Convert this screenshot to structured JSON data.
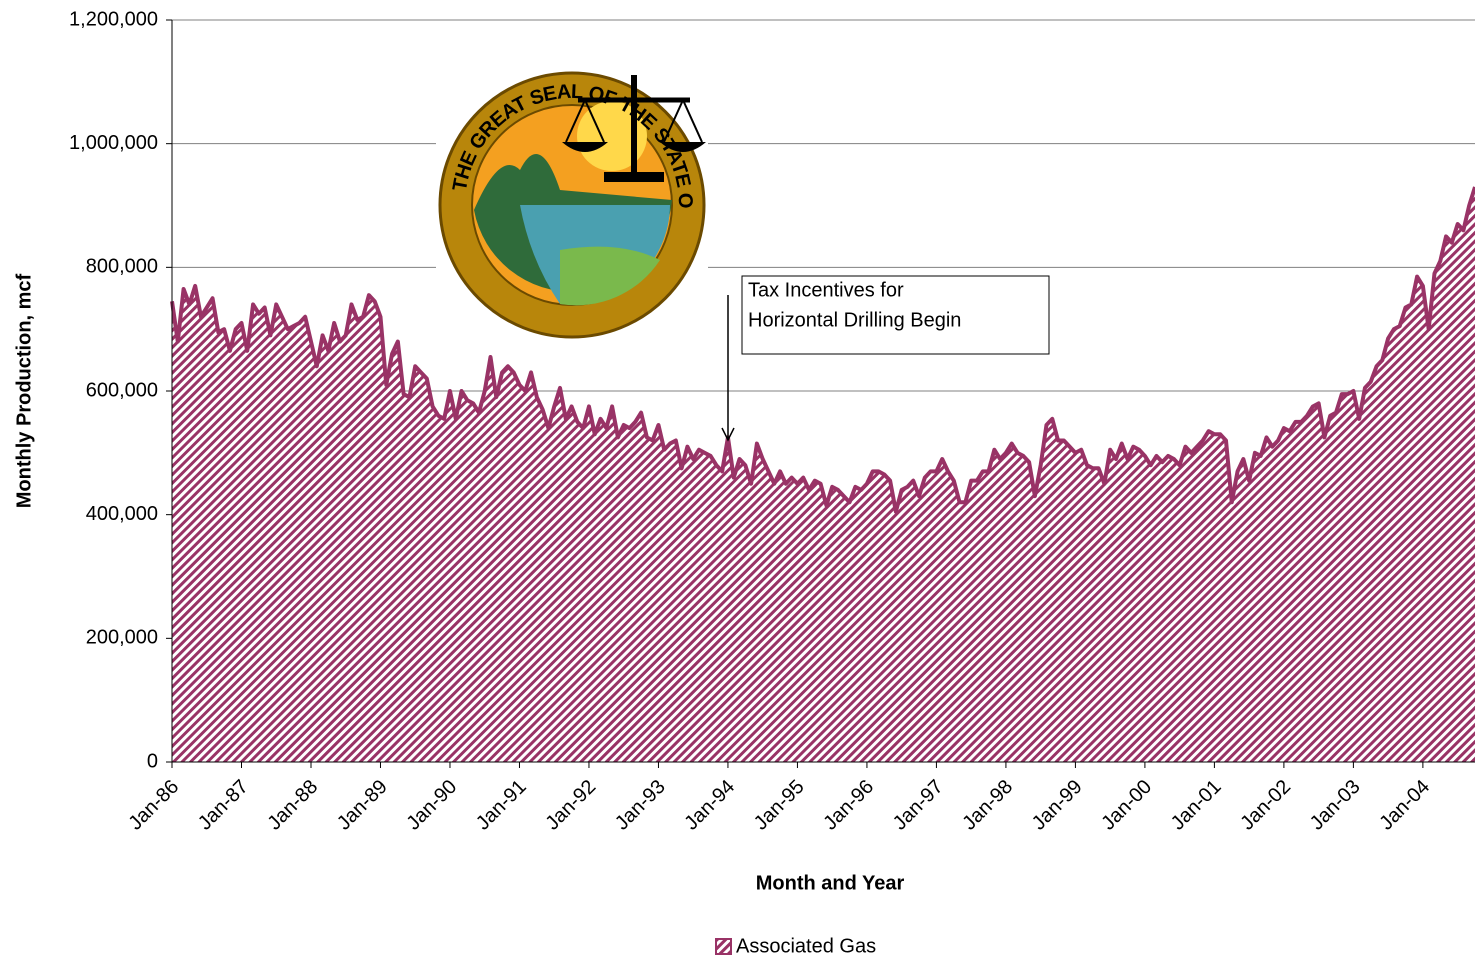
{
  "chart_data": {
    "type": "area",
    "y_label": "Monthly Production, mcf",
    "x_label": "Month and Year",
    "annotation": [
      "Tax Incentives for",
      "Horizontal Drilling Begin"
    ],
    "seal_text": "THE GREAT SEAL OF THE STATE OF MONTANA",
    "ylim": [
      0,
      1200000
    ],
    "yticks": [
      0,
      {
        "value": 200000,
        "label": "200,000"
      },
      {
        "value": 400000,
        "label": "400,000"
      },
      {
        "value": 600000,
        "label": "600,000"
      },
      {
        "value": 800000,
        "label": "800,000"
      },
      {
        "value": 1000000,
        "label": "1,000,000"
      },
      {
        "value": 1200000,
        "label": "1,200,000"
      }
    ],
    "grid": true,
    "legend": "bottom",
    "categories": [
      "Jan-86",
      null,
      null,
      null,
      null,
      null,
      null,
      null,
      null,
      null,
      null,
      null,
      "Jan-87",
      null,
      null,
      null,
      null,
      null,
      null,
      null,
      null,
      null,
      null,
      null,
      "Jan-88",
      null,
      null,
      null,
      null,
      null,
      null,
      null,
      null,
      null,
      null,
      null,
      "Jan-89",
      null,
      null,
      null,
      null,
      null,
      null,
      null,
      null,
      null,
      null,
      null,
      "Jan-90",
      null,
      null,
      null,
      null,
      null,
      null,
      null,
      null,
      null,
      null,
      null,
      "Jan-91",
      null,
      null,
      null,
      null,
      null,
      null,
      null,
      null,
      null,
      null,
      null,
      "Jan-92",
      null,
      null,
      null,
      null,
      null,
      null,
      null,
      null,
      null,
      null,
      null,
      "Jan-93",
      null,
      null,
      null,
      null,
      null,
      null,
      null,
      null,
      null,
      null,
      null,
      "Jan-94",
      null,
      null,
      null,
      null,
      null,
      null,
      null,
      null,
      null,
      null,
      null,
      "Jan-95",
      null,
      null,
      null,
      null,
      null,
      null,
      null,
      null,
      null,
      null,
      null,
      "Jan-96",
      null,
      null,
      null,
      null,
      null,
      null,
      null,
      null,
      null,
      null,
      null,
      "Jan-97",
      null,
      null,
      null,
      null,
      null,
      null,
      null,
      null,
      null,
      null,
      null,
      "Jan-98",
      null,
      null,
      null,
      null,
      null,
      null,
      null,
      null,
      null,
      null,
      null,
      "Jan-99",
      null,
      null,
      null,
      null,
      null,
      null,
      null,
      null,
      null,
      null,
      null,
      "Jan-00",
      null,
      null,
      null,
      null,
      null,
      null,
      null,
      null,
      null,
      null,
      null,
      "Jan-01",
      null,
      null,
      null,
      null,
      null,
      null,
      null,
      null,
      null,
      null,
      null,
      "Jan-02",
      null,
      null,
      null,
      null,
      null,
      null,
      null,
      null,
      null,
      null,
      null,
      "Jan-03",
      null,
      null,
      null,
      null,
      null,
      null,
      null,
      null,
      null,
      null,
      null,
      "Jan-04",
      null,
      null,
      null,
      null,
      null,
      null,
      null,
      null,
      null
    ],
    "series": [
      {
        "name": "Associated Gas",
        "color": "#993366",
        "values": [
          745000,
          680000,
          765000,
          740000,
          770000,
          720000,
          735000,
          750000,
          695000,
          700000,
          665000,
          700000,
          710000,
          665000,
          740000,
          725000,
          735000,
          690000,
          740000,
          720000,
          700000,
          705000,
          710000,
          720000,
          680000,
          640000,
          690000,
          665000,
          710000,
          680000,
          690000,
          740000,
          715000,
          720000,
          755000,
          745000,
          720000,
          610000,
          660000,
          680000,
          595000,
          590000,
          640000,
          630000,
          620000,
          575000,
          560000,
          555000,
          600000,
          555000,
          600000,
          585000,
          580000,
          565000,
          600000,
          655000,
          590000,
          630000,
          640000,
          630000,
          610000,
          600000,
          630000,
          590000,
          570000,
          540000,
          575000,
          605000,
          555000,
          575000,
          550000,
          540000,
          575000,
          530000,
          555000,
          540000,
          575000,
          525000,
          545000,
          540000,
          550000,
          565000,
          525000,
          520000,
          545000,
          505000,
          515000,
          520000,
          475000,
          510000,
          490000,
          505000,
          500000,
          495000,
          480000,
          470000,
          525000,
          460000,
          490000,
          480000,
          450000,
          515000,
          490000,
          470000,
          450000,
          470000,
          450000,
          460000,
          450000,
          460000,
          440000,
          455000,
          450000,
          415000,
          445000,
          440000,
          430000,
          420000,
          445000,
          440000,
          450000,
          470000,
          470000,
          465000,
          455000,
          405000,
          440000,
          445000,
          455000,
          430000,
          460000,
          470000,
          470000,
          490000,
          470000,
          455000,
          420000,
          420000,
          455000,
          455000,
          470000,
          470000,
          505000,
          490000,
          500000,
          515000,
          500000,
          495000,
          485000,
          430000,
          480000,
          545000,
          555000,
          520000,
          520000,
          510000,
          500000,
          505000,
          480000,
          475000,
          475000,
          450000,
          505000,
          490000,
          515000,
          490000,
          510000,
          505000,
          495000,
          480000,
          495000,
          485000,
          495000,
          490000,
          480000,
          510000,
          500000,
          510000,
          520000,
          535000,
          530000,
          530000,
          520000,
          420000,
          470000,
          490000,
          455000,
          500000,
          495000,
          525000,
          510000,
          520000,
          540000,
          535000,
          550000,
          550000,
          560000,
          575000,
          580000,
          525000,
          560000,
          565000,
          595000,
          595000,
          600000,
          555000,
          605000,
          615000,
          640000,
          650000,
          685000,
          700000,
          705000,
          735000,
          740000,
          785000,
          770000,
          700000,
          790000,
          810000,
          850000,
          840000,
          870000,
          860000,
          900000,
          930000
        ]
      }
    ]
  }
}
